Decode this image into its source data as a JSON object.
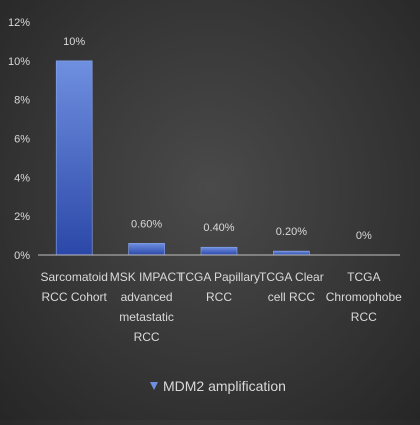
{
  "chart_data": {
    "type": "bar",
    "categories": [
      [
        "Sarcomatoid",
        "RCC Cohort"
      ],
      [
        "MSK IMPACT",
        "advanced",
        "metastatic",
        "RCC"
      ],
      [
        "TCGA Papillary",
        "RCC"
      ],
      [
        "TCGA Clear",
        "cell RCC"
      ],
      [
        "TCGA",
        "Chromophobe",
        "RCC"
      ]
    ],
    "values": [
      10,
      0.6,
      0.4,
      0.2,
      0
    ],
    "data_labels": [
      "10%",
      "0.60%",
      "0.40%",
      "0.20%",
      "0%"
    ],
    "yticks": [
      "0%",
      "2%",
      "4%",
      "6%",
      "8%",
      "10%",
      "12%"
    ],
    "ylim": [
      0,
      12
    ],
    "title": "",
    "xlabel": "",
    "ylabel": "",
    "grid": false,
    "legend": {
      "position": "bottom",
      "entries": [
        "MDM2 amplification"
      ]
    },
    "colors": {
      "bar_top": "#6f8fe0",
      "bar_bottom": "#2b48a8",
      "bar_edge": "#8aa6f0",
      "text": "#d9d9d9",
      "axis": "#bfbfbf"
    }
  }
}
